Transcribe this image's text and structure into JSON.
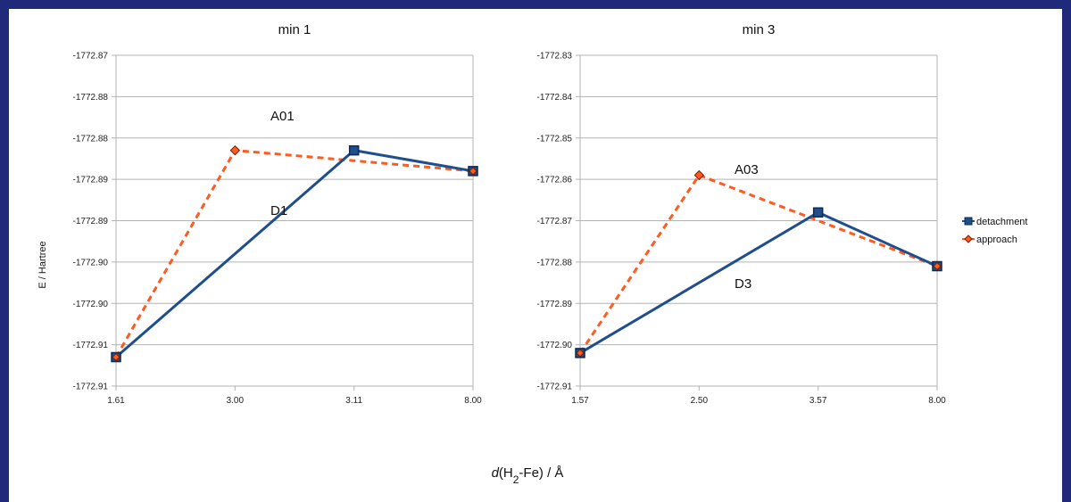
{
  "chart_data": [
    {
      "type": "line",
      "title": "min 1",
      "ylabel": "E / Hartree",
      "xlabel": "d(H2-Fe) / Å",
      "categories": [
        "1.61",
        "3.00",
        "3.11",
        "8.00"
      ],
      "y_ticks": [
        "-1772.87",
        "-1772.88",
        "-1772.88",
        "-1772.89",
        "-1772.89",
        "-1772.90",
        "-1772.90",
        "-1772.91",
        "-1772.91"
      ],
      "ylim": [
        -1772.91,
        -1772.87
      ],
      "grid": true,
      "series": [
        {
          "name": "detachment",
          "color": "#1f4e8c",
          "style": "solid",
          "marker": "square",
          "values": [
            -1772.9065,
            null,
            -1772.8815,
            -1772.884
          ]
        },
        {
          "name": "approach",
          "color": "#ff5a1f",
          "style": "dashed",
          "marker": "diamond",
          "values": [
            -1772.9065,
            -1772.8815,
            null,
            -1772.884
          ]
        }
      ],
      "annotations": [
        "A01",
        "D1"
      ]
    },
    {
      "type": "line",
      "title": "min 3",
      "categories": [
        "1.57",
        "2.50",
        "3.57",
        "8.00"
      ],
      "y_ticks": [
        "-1772.83",
        "-1772.84",
        "-1772.85",
        "-1772.86",
        "-1772.87",
        "-1772.88",
        "-1772.89",
        "-1772.90",
        "-1772.91"
      ],
      "ylim": [
        -1772.91,
        -1772.83
      ],
      "grid": true,
      "series": [
        {
          "name": "detachment",
          "color": "#1f4e8c",
          "style": "solid",
          "marker": "square",
          "values": [
            -1772.902,
            null,
            -1772.868,
            -1772.881
          ]
        },
        {
          "name": "approach",
          "color": "#ff5a1f",
          "style": "dashed",
          "marker": "diamond",
          "values": [
            -1772.902,
            -1772.859,
            null,
            -1772.881
          ]
        }
      ],
      "annotations": [
        "A03",
        "D3"
      ]
    }
  ],
  "legend": [
    {
      "label": "detachment",
      "color": "#1f4e8c",
      "marker": "square"
    },
    {
      "label": "approach",
      "color": "#ff5a1f",
      "marker": "diamond"
    }
  ],
  "legend_position": "right",
  "axis_label": {
    "x_prefix": "d",
    "x_open": "(H",
    "x_sub": "2",
    "x_rest": "-Fe) / Å",
    "y": "E / Hartree"
  }
}
